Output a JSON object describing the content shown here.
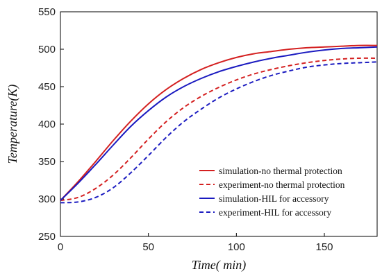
{
  "chart_data": {
    "type": "line",
    "xlabel": "Time( min)",
    "ylabel": "Temperature(K)",
    "xlim": [
      0,
      180
    ],
    "ylim": [
      250,
      550
    ],
    "x_ticks": [
      0,
      50,
      100,
      150
    ],
    "y_ticks": [
      250,
      300,
      350,
      400,
      450,
      500,
      550
    ],
    "grid": false,
    "legend_position": "bottom-right",
    "series": [
      {
        "name": "simulation-no thermal protection",
        "color": "#d42020",
        "dash": "solid",
        "x": [
          0,
          10,
          20,
          30,
          40,
          50,
          60,
          70,
          80,
          90,
          100,
          110,
          120,
          130,
          140,
          150,
          160,
          170,
          180
        ],
        "y": [
          298,
          323,
          350,
          378,
          404,
          427,
          446,
          461,
          473,
          482,
          489,
          494,
          497,
          500,
          502,
          503,
          504,
          505,
          505
        ]
      },
      {
        "name": "experiment-no thermal protection",
        "color": "#d42020",
        "dash": "dashed",
        "x": [
          0,
          10,
          20,
          30,
          40,
          50,
          60,
          70,
          80,
          90,
          100,
          110,
          120,
          130,
          140,
          150,
          160,
          170,
          180
        ],
        "y": [
          298,
          302,
          314,
          332,
          355,
          380,
          403,
          422,
          437,
          449,
          459,
          467,
          473,
          478,
          482,
          485,
          487,
          488,
          488
        ]
      },
      {
        "name": "simulation-HIL for accessory",
        "color": "#1a1ac0",
        "dash": "solid",
        "x": [
          0,
          10,
          20,
          30,
          40,
          50,
          60,
          70,
          80,
          90,
          100,
          110,
          120,
          130,
          140,
          150,
          160,
          170,
          180
        ],
        "y": [
          298,
          321,
          346,
          372,
          397,
          418,
          436,
          450,
          461,
          470,
          477,
          483,
          488,
          492,
          496,
          499,
          501,
          502,
          503
        ]
      },
      {
        "name": "experiment-HIL for accessory",
        "color": "#1a1ac0",
        "dash": "dashed",
        "x": [
          0,
          10,
          20,
          30,
          40,
          50,
          60,
          70,
          80,
          90,
          100,
          110,
          120,
          130,
          140,
          150,
          160,
          170,
          180
        ],
        "y": [
          295,
          296,
          302,
          315,
          335,
          358,
          382,
          403,
          420,
          435,
          447,
          457,
          465,
          471,
          476,
          479,
          481,
          482,
          483
        ]
      }
    ]
  }
}
